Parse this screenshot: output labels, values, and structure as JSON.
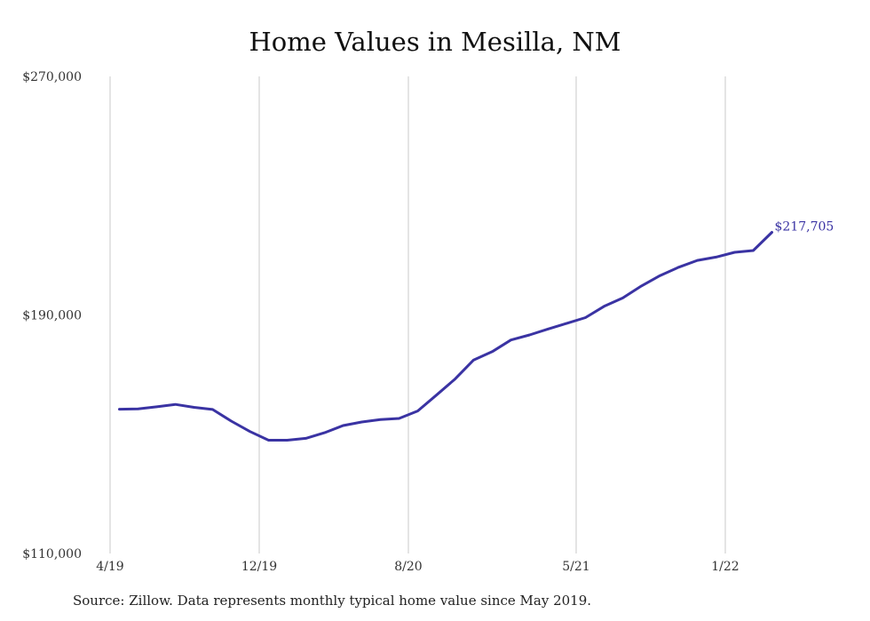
{
  "title": "Home Values in Mesilla, NM",
  "source": "Source: Zillow. Data represents monthly typical home value since May 2019.",
  "colors": {
    "line": "#3a33a3",
    "grid": "#c8c8c8"
  },
  "chart_data": {
    "type": "line",
    "title": "Home Values in Mesilla, NM",
    "xlabel": "",
    "ylabel": "",
    "x_ticks": [
      {
        "label": "4/19",
        "month": 0
      },
      {
        "label": "12/19",
        "month": 8
      },
      {
        "label": "8/20",
        "month": 16
      },
      {
        "label": "5/21",
        "month": 25
      },
      {
        "label": "1/22",
        "month": 33
      }
    ],
    "y_ticks": [
      {
        "label": "$110,000",
        "value": 110000
      },
      {
        "label": "$190,000",
        "value": 190000
      },
      {
        "label": "$270,000",
        "value": 270000
      }
    ],
    "ylim": [
      110000,
      270000
    ],
    "xlim_months": [
      0,
      39
    ],
    "grid": "vertical",
    "series": [
      {
        "start_month": 0.5,
        "values": [
          158400,
          158500,
          159200,
          160000,
          159000,
          158300,
          154400,
          150900,
          148000,
          148000,
          148600,
          150500,
          152900,
          154100,
          154900,
          155300,
          157800,
          163100,
          168500,
          174900,
          177700,
          181600,
          183300,
          185300,
          187200,
          189100,
          192900,
          195700,
          199700,
          203200,
          206000,
          208300,
          209400,
          211000,
          211600,
          217705
        ]
      }
    ],
    "end_label": "$217,705"
  }
}
